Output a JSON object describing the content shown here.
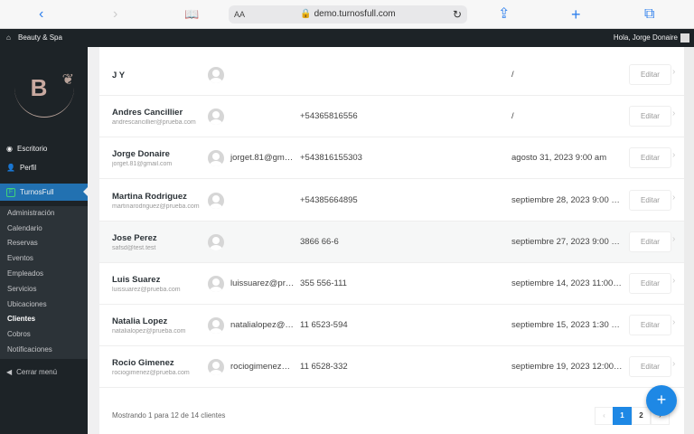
{
  "browser": {
    "url": "demo.turnosfull.com",
    "aa": "AA"
  },
  "adminbar": {
    "site": "Beauty & Spa",
    "greeting": "Hola, Jorge Donaire"
  },
  "logo": {
    "letter": "B",
    "text": "BEAUTY & SPA"
  },
  "sidebar": {
    "top": [
      {
        "label": "Escritorio",
        "icon": "dashboard-icon"
      },
      {
        "label": "Perfil",
        "icon": "user-icon"
      }
    ],
    "active": {
      "label": "TurnosFull"
    },
    "sub": [
      "Administración",
      "Calendario",
      "Reservas",
      "Eventos",
      "Empleados",
      "Servicios",
      "Ubicaciones",
      "Clientes",
      "Cobros",
      "Notificaciones"
    ],
    "current": "Clientes",
    "collapse": "Cerrar menú"
  },
  "clients": [
    {
      "name": "J Y",
      "email": "",
      "email_col": "",
      "phone": "",
      "date": "/"
    },
    {
      "name": "Andres Cancillier",
      "email": "andrescancillier@prueba.com",
      "email_col": "",
      "phone": "+54365816556",
      "date": "/"
    },
    {
      "name": "Jorge Donaire",
      "email": "jorget.81@gmail.com",
      "email_col": "jorget.81@gm…",
      "phone": "+543816155303",
      "date": "agosto 31, 2023 9:00 am"
    },
    {
      "name": "Martina Rodriguez",
      "email": "martinarodriguez@prueba.com",
      "email_col": "",
      "phone": "+54385664895",
      "date": "septiembre 28, 2023 9:00 …"
    },
    {
      "name": "Jose Perez",
      "email": "safsd@test.test",
      "email_col": "",
      "phone": "3866 66-6",
      "date": "septiembre 27, 2023 9:00 …"
    },
    {
      "name": "Luis Suarez",
      "email": "luissuarez@prueba.com",
      "email_col": "luissuarez@pr…",
      "phone": "355 556-111",
      "date": "septiembre 14, 2023 11:00…"
    },
    {
      "name": "Natalia Lopez",
      "email": "natalialopez@prueba.com",
      "email_col": "natalialopez@…",
      "phone": "11 6523-594",
      "date": "septiembre 15, 2023 1:30 …"
    },
    {
      "name": "Rocio Gimenez",
      "email": "rociogimenez@prueba.com",
      "email_col": "rociogimenez…",
      "phone": "11 6528-332",
      "date": "septiembre 19, 2023 12:00…"
    }
  ],
  "edit_label": "Editar",
  "footer": {
    "summary": "Mostrando 1 para 12 de 14 clientes",
    "pages": [
      "1",
      "2"
    ],
    "current_page": "1",
    "prev": "‹",
    "next": "›"
  },
  "fab": "+",
  "colors": {
    "accent": "#2271b1",
    "fab": "#1e88e5",
    "dark": "#1d2327"
  }
}
